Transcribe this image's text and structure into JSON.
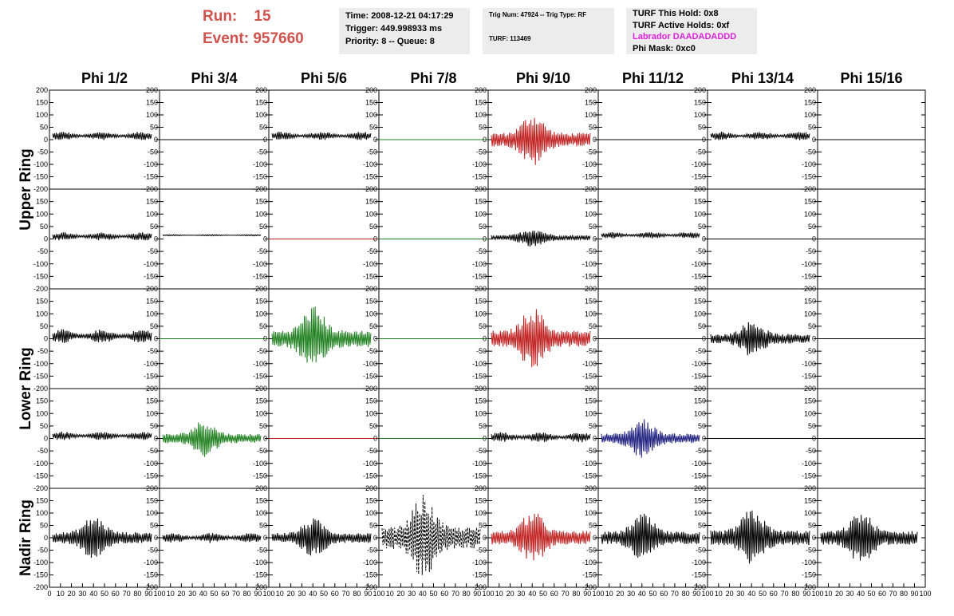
{
  "header": {
    "run_label": "Run:    15",
    "event_label": "Event: 957660"
  },
  "time_panel": {
    "time": "Time: 2008-12-21 04:17:29",
    "trigger": "Trigger: 449.998933 ms",
    "priority": "Priority: 8 -- Queue: 8"
  },
  "trig_panel": {
    "trig": "Trig Num: 47924 -- Trig Type: RF",
    "turf": "TURF: 113469"
  },
  "turf_panel": {
    "hold": "TURF This Hold: 0x8",
    "active": "TURF Active Holds: 0xf",
    "labrador": "Labrador DAADADADDD",
    "phimask": "Phi Mask: 0xc0"
  },
  "colors": {
    "black": "#000000",
    "red": "#c02020",
    "green": "#208020",
    "blue": "#202080",
    "header_red": "#d0524c",
    "magenta": "#e020e0"
  },
  "chart_data": {
    "type": "line",
    "columns": [
      "Phi 1/2",
      "Phi 3/4",
      "Phi 5/6",
      "Phi 7/8",
      "Phi 9/10",
      "Phi 11/12",
      "Phi 13/14",
      "Phi 15/16"
    ],
    "ring_labels": [
      "Upper Ring",
      "Lower Ring",
      "Nadir Ring"
    ],
    "ylim": [
      -200,
      200
    ],
    "xlim": [
      0,
      100
    ],
    "yticks": [
      "200",
      "150",
      "100",
      "50",
      "0",
      "-50",
      "-100",
      "-150",
      "-200"
    ],
    "xticks_first": [
      "0",
      "10",
      "20",
      "30",
      "40",
      "50",
      "60",
      "70",
      "80",
      "90",
      "100"
    ],
    "xticks_other": [
      "10",
      "20",
      "30",
      "40",
      "50",
      "60",
      "70",
      "80",
      "90",
      "100"
    ],
    "rows": [
      [
        {
          "color": "black",
          "amplitude": 25,
          "offset": 15,
          "shape": "noise"
        },
        {
          "color": "black",
          "amplitude": 0,
          "offset": 0,
          "shape": "flat"
        },
        {
          "color": "black",
          "amplitude": 25,
          "offset": 15,
          "shape": "noise"
        },
        {
          "color": "green",
          "amplitude": 0,
          "offset": 0,
          "shape": "flat"
        },
        {
          "color": "red",
          "amplitude": 110,
          "offset": 0,
          "shape": "pulse"
        },
        {
          "color": "black",
          "amplitude": 0,
          "offset": 0,
          "shape": "flat"
        },
        {
          "color": "black",
          "amplitude": 25,
          "offset": 15,
          "shape": "noise"
        },
        {
          "color": "black",
          "amplitude": 0,
          "offset": 0,
          "shape": "flat"
        }
      ],
      [
        {
          "color": "black",
          "amplitude": 25,
          "offset": 10,
          "shape": "noise"
        },
        {
          "color": "black",
          "amplitude": 4,
          "offset": 15,
          "shape": "noise"
        },
        {
          "color": "red",
          "amplitude": 0,
          "offset": 0,
          "shape": "flat"
        },
        {
          "color": "green",
          "amplitude": 0,
          "offset": 0,
          "shape": "flat"
        },
        {
          "color": "black",
          "amplitude": 40,
          "offset": 5,
          "shape": "pulse"
        },
        {
          "color": "black",
          "amplitude": 20,
          "offset": 15,
          "shape": "noise"
        },
        {
          "color": "black",
          "amplitude": 0,
          "offset": 0,
          "shape": "flat"
        },
        {
          "color": "black",
          "amplitude": 0,
          "offset": 0,
          "shape": "flat"
        }
      ],
      [
        {
          "color": "black",
          "amplitude": 40,
          "offset": 10,
          "shape": "noise"
        },
        {
          "color": "green",
          "amplitude": 0,
          "offset": 0,
          "shape": "flat"
        },
        {
          "color": "green",
          "amplitude": 135,
          "offset": 0,
          "shape": "pulse"
        },
        {
          "color": "green",
          "amplitude": 0,
          "offset": 0,
          "shape": "flat"
        },
        {
          "color": "red",
          "amplitude": 130,
          "offset": 0,
          "shape": "pulse"
        },
        {
          "color": "black",
          "amplitude": 0,
          "offset": 0,
          "shape": "flat"
        },
        {
          "color": "black",
          "amplitude": 75,
          "offset": 0,
          "shape": "pulse"
        },
        {
          "color": "black",
          "amplitude": 0,
          "offset": 0,
          "shape": "flat"
        }
      ],
      [
        {
          "color": "black",
          "amplitude": 25,
          "offset": 10,
          "shape": "noise"
        },
        {
          "color": "green",
          "amplitude": 75,
          "offset": 0,
          "shape": "pulse"
        },
        {
          "color": "red",
          "amplitude": 0,
          "offset": 0,
          "shape": "flat"
        },
        {
          "color": "green",
          "amplitude": 0,
          "offset": 0,
          "shape": "flat"
        },
        {
          "color": "black",
          "amplitude": 30,
          "offset": 5,
          "shape": "noise"
        },
        {
          "color": "blue",
          "amplitude": 80,
          "offset": 0,
          "shape": "pulse"
        },
        {
          "color": "black",
          "amplitude": 0,
          "offset": 0,
          "shape": "flat"
        },
        {
          "color": "black",
          "amplitude": 0,
          "offset": 0,
          "shape": "flat"
        }
      ],
      [
        {
          "color": "black",
          "amplitude": 90,
          "offset": 0,
          "shape": "pulse"
        },
        {
          "color": "black",
          "amplitude": 30,
          "offset": 0,
          "shape": "noise"
        },
        {
          "color": "black",
          "amplitude": 80,
          "offset": 0,
          "shape": "pulse"
        },
        {
          "color": "black",
          "amplitude": 175,
          "offset": 0,
          "shape": "dashed"
        },
        {
          "color": "red",
          "amplitude": 110,
          "offset": 0,
          "shape": "pulse"
        },
        {
          "color": "black",
          "amplitude": 100,
          "offset": 0,
          "shape": "pulse"
        },
        {
          "color": "black",
          "amplitude": 120,
          "offset": 0,
          "shape": "pulse"
        },
        {
          "color": "black",
          "amplitude": 110,
          "offset": 0,
          "shape": "pulse"
        }
      ]
    ]
  }
}
